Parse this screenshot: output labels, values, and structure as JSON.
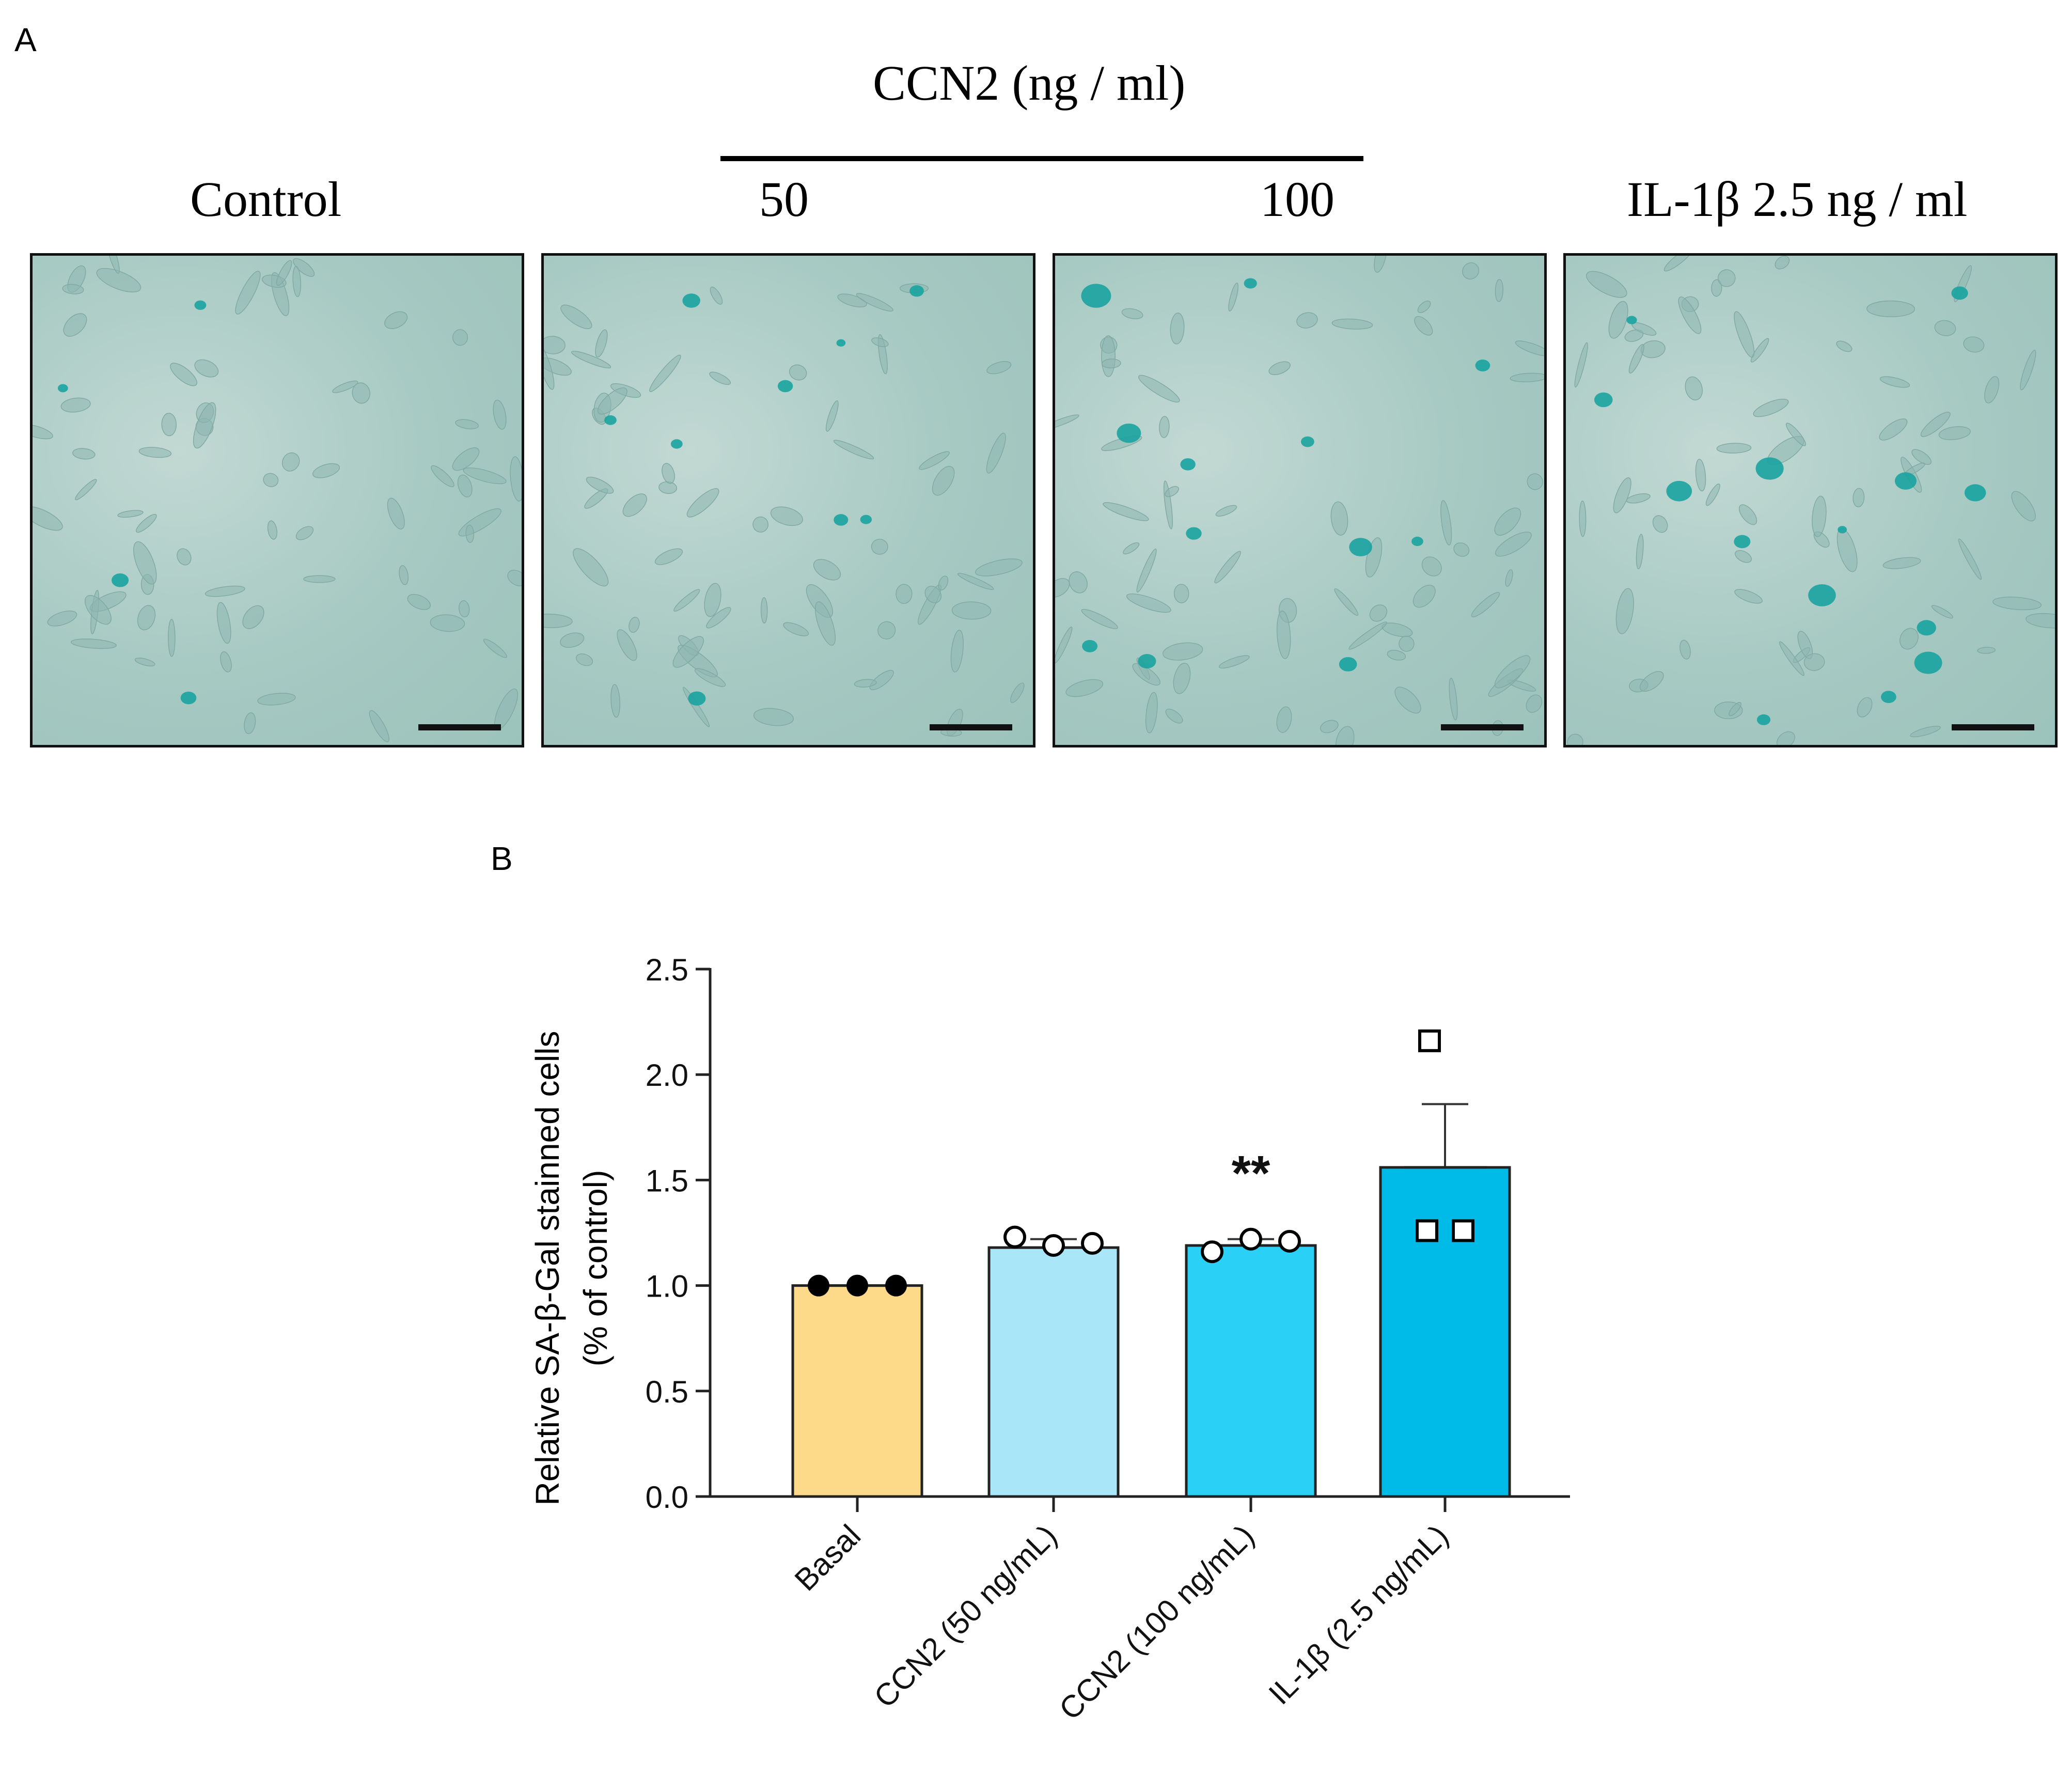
{
  "panel_a": {
    "letter": "A",
    "group_label": "CCN2 (ng / ml)",
    "images": [
      {
        "label": "Control",
        "scale_bar": true
      },
      {
        "label": "50",
        "scale_bar": true
      },
      {
        "label": "100",
        "scale_bar": true
      },
      {
        "label": "IL-1β 2.5 ng / ml",
        "scale_bar": true
      }
    ],
    "colors": {
      "background": "#a6c9c2",
      "stain": "#1aa3a0",
      "cell": "#8eb7b0"
    }
  },
  "panel_b": {
    "letter": "B"
  },
  "chart_data": {
    "type": "bar",
    "categories": [
      "Basal",
      "CCN2 (50 ng/mL)",
      "CCN2 (100 ng/mL)",
      "IL-1β (2.5 ng/mL)"
    ],
    "values": [
      1.0,
      1.18,
      1.19,
      1.56
    ],
    "error_upper": [
      1.0,
      1.22,
      1.22,
      1.86
    ],
    "points": [
      [
        1.0,
        1.0,
        1.0
      ],
      [
        1.23,
        1.19,
        1.2
      ],
      [
        1.16,
        1.22,
        1.21
      ],
      [
        2.16,
        1.26,
        1.26
      ]
    ],
    "point_markers": [
      "filled-circle",
      "open-circle",
      "open-circle",
      "open-square"
    ],
    "colors": [
      "#fdd98a",
      "#a8e6f8",
      "#2bd0f7",
      "#00bbe8"
    ],
    "annotations": [
      {
        "category": "CCN2 (100 ng/mL)",
        "text": "**"
      }
    ],
    "ylabel": "Relative SA-β-Gal stainned cells",
    "ylabel2": "(% of control)",
    "ylim": [
      0,
      2.5
    ],
    "yticks": [
      "0.0",
      "0.5",
      "1.0",
      "1.5",
      "2.0",
      "2.5"
    ],
    "grid": false
  }
}
